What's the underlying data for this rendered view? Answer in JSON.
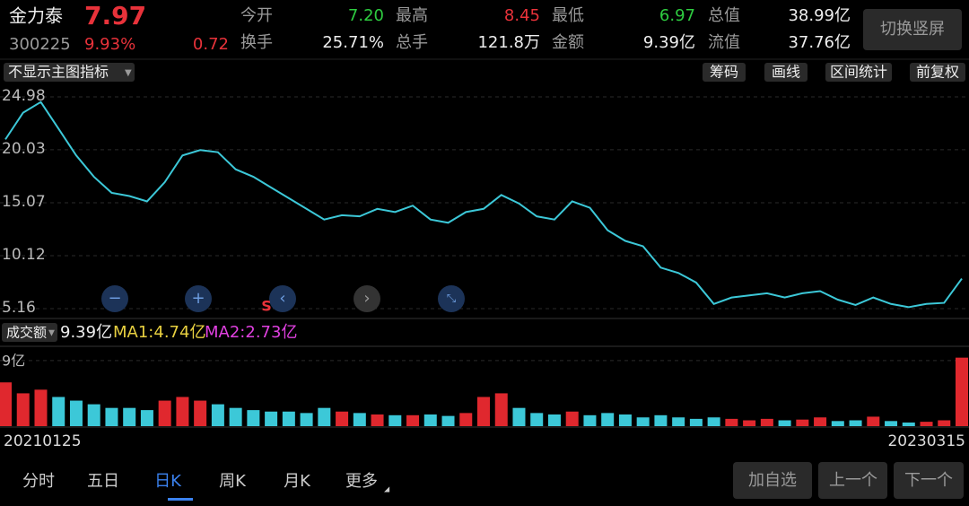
{
  "header": {
    "name": "金力泰",
    "price": "7.97",
    "code": "300225",
    "change_pct": "9.93%",
    "change": "0.72",
    "button": "切换竖屏",
    "stats": [
      {
        "label": "今开",
        "value": "7.20"
      },
      {
        "label": "换手",
        "value": "25.71%"
      },
      {
        "label": "最高",
        "value": "8.45"
      },
      {
        "label": "总手",
        "value": "121.8万"
      },
      {
        "label": "最低",
        "value": "6.97"
      },
      {
        "label": "金额",
        "value": "9.39亿"
      },
      {
        "label": "总值",
        "value": "38.99亿"
      },
      {
        "label": "流值",
        "value": "37.76亿"
      }
    ]
  },
  "toolbar": {
    "indicator": "不显示主图指标",
    "buttons": [
      "筹码",
      "画线",
      "区间统计",
      "前复权"
    ],
    "marker": "S"
  },
  "volume_header": {
    "label": "成交额",
    "value": "9.39亿",
    "ma1": "MA1:4.74亿",
    "ma2": "MA2:2.73亿"
  },
  "tabs": [
    "分时",
    "五日",
    "日K",
    "周K",
    "月K",
    "更多"
  ],
  "actions": [
    "加自选",
    "上一个",
    "下一个"
  ],
  "chart_data": [
    {
      "type": "line",
      "color": "#3cc8d8",
      "ylim": [
        4.49,
        26.07
      ],
      "yticks": [
        24.98,
        20.03,
        15.07,
        10.12,
        5.16
      ],
      "grid": true,
      "categories": [
        "20210125",
        null,
        null,
        null,
        null,
        null,
        null,
        null,
        null,
        null,
        null,
        null,
        null,
        null,
        null,
        null,
        null,
        null,
        null,
        null,
        null,
        null,
        null,
        null,
        null,
        null,
        null,
        null,
        null,
        null,
        null,
        null,
        null,
        null,
        null,
        null,
        null,
        null,
        null,
        null,
        null,
        null,
        null,
        null,
        null,
        null,
        null,
        null,
        null,
        null,
        null,
        null,
        null,
        null,
        "20230315"
      ],
      "values": [
        21,
        23.5,
        24.5,
        22,
        19.5,
        17.5,
        16,
        15.7,
        15.2,
        17,
        19.5,
        20,
        19.8,
        18.2,
        17.5,
        16.5,
        15.5,
        14.5,
        13.5,
        13.9,
        13.8,
        14.5,
        14.2,
        14.8,
        13.5,
        13.2,
        14.2,
        14.5,
        15.8,
        15,
        13.8,
        13.5,
        15.2,
        14.6,
        12.5,
        11.5,
        11,
        9,
        8.5,
        7.6,
        5.6,
        6.2,
        6.4,
        6.6,
        6.2,
        6.6,
        6.8,
        6.0,
        5.5,
        6.2,
        5.6,
        5.3,
        5.6,
        5.7,
        7.97
      ]
    },
    {
      "type": "bar",
      "up_color": "#e0282e",
      "down_color": "#3cc8d8",
      "ylim": [
        0,
        10.7
      ],
      "yticks": [
        {
          "value": 9,
          "label": "9亿"
        }
      ],
      "values": [
        6,
        4.5,
        5,
        4,
        3.5,
        3,
        2.5,
        2.5,
        2.2,
        3.5,
        4,
        3.5,
        3,
        2.5,
        2.2,
        2,
        2,
        1.8,
        2.5,
        2,
        1.8,
        1.6,
        1.5,
        1.5,
        1.6,
        1.4,
        1.8,
        4,
        4.5,
        2.5,
        1.8,
        1.6,
        2,
        1.5,
        1.8,
        1.6,
        1.2,
        1.5,
        1.2,
        1,
        1.2,
        1,
        0.8,
        1,
        0.8,
        0.9,
        1.2,
        0.7,
        0.8,
        1.3,
        0.7,
        0.5,
        0.6,
        0.8,
        9.39
      ]
    }
  ]
}
